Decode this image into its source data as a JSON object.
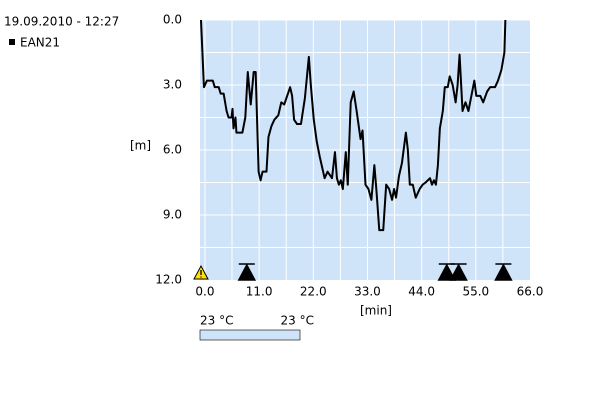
{
  "chart_data": {
    "type": "line",
    "header": "19.09.2010 - 12:27",
    "ylabel": "[m]",
    "xlabel": "[min]",
    "y_inverted": true,
    "xlim": [
      -1,
      66
    ],
    "ylim": [
      0,
      12
    ],
    "xticks": [
      {
        "value": 0,
        "label": "0.0"
      },
      {
        "value": 11,
        "label": "11.0"
      },
      {
        "value": 22,
        "label": "22.0"
      },
      {
        "value": 33,
        "label": "33.0"
      },
      {
        "value": 44,
        "label": "44.0"
      },
      {
        "value": 55,
        "label": "55.0"
      },
      {
        "value": 66,
        "label": "66.0"
      }
    ],
    "yticks": [
      {
        "value": 0,
        "label": "0.0"
      },
      {
        "value": 3,
        "label": "3.0"
      },
      {
        "value": 6,
        "label": "6.0"
      },
      {
        "value": 9,
        "label": "9.0"
      },
      {
        "value": 12,
        "label": "12.0"
      }
    ],
    "xgrid": [
      0,
      5.5,
      11,
      16.5,
      22,
      27.5,
      33,
      38.5,
      44,
      49.5,
      55,
      60.5
    ],
    "ygrid": [
      0,
      1.5,
      3,
      4.5,
      6,
      7.5,
      9,
      10.5
    ],
    "background": "#cfe3f9",
    "series": [
      {
        "name": "EAN21",
        "color": "#000000",
        "x": [
          -0.8,
          -0.2,
          0.4,
          1.6,
          2.0,
          2.8,
          3.2,
          3.8,
          4.4,
          4.8,
          5.4,
          5.6,
          5.8,
          6.2,
          6.4,
          7.6,
          8.2,
          8.7,
          9.3,
          9.9,
          10.3,
          10.9,
          11.3,
          11.7,
          12.5,
          12.9,
          13.5,
          14.1,
          14.9,
          15.5,
          16.1,
          16.7,
          17.3,
          17.7,
          18.1,
          18.7,
          19.5,
          20.3,
          21.1,
          21.5,
          22.1,
          22.7,
          23.3,
          23.9,
          24.3,
          24.9,
          25.8,
          26.4,
          26.8,
          27.2,
          27.6,
          28.0,
          28.6,
          29.0,
          29.6,
          30.2,
          30.8,
          31.6,
          32.0,
          32.6,
          33.2,
          33.8,
          34.4,
          34.8,
          35.4,
          36.2,
          36.8,
          37.4,
          38.0,
          38.4,
          38.8,
          39.4,
          40.0,
          40.8,
          41.2,
          41.6,
          42.2,
          42.8,
          43.6,
          44.2,
          44.8,
          45.7,
          46.1,
          46.5,
          46.9,
          47.3,
          47.7,
          48.3,
          48.7,
          49.3,
          49.7,
          50.3,
          50.9,
          51.3,
          51.7,
          52.3,
          52.9,
          53.5,
          54.1,
          54.7,
          55.1,
          55.9,
          56.5,
          57.3,
          57.9,
          58.9,
          59.5,
          60.2,
          60.8,
          61.0
        ],
        "values": [
          0,
          3.1,
          2.8,
          2.8,
          3.1,
          3.1,
          3.4,
          3.4,
          4.2,
          4.5,
          4.5,
          4.1,
          5.0,
          4.5,
          5.2,
          5.2,
          4.5,
          2.4,
          3.9,
          2.4,
          2.4,
          7.0,
          7.4,
          7.0,
          7.0,
          5.4,
          4.9,
          4.6,
          4.4,
          3.8,
          3.9,
          3.5,
          3.1,
          3.5,
          4.6,
          4.8,
          4.8,
          3.6,
          1.7,
          3.0,
          4.6,
          5.6,
          6.3,
          6.9,
          7.3,
          7.0,
          7.3,
          6.1,
          7.3,
          7.6,
          7.4,
          7.8,
          6.1,
          7.6,
          3.8,
          3.3,
          4.2,
          5.5,
          5.1,
          7.6,
          7.8,
          8.3,
          6.7,
          7.8,
          9.7,
          9.7,
          7.6,
          7.8,
          8.3,
          7.8,
          8.2,
          7.2,
          6.6,
          5.2,
          6.0,
          7.6,
          7.6,
          8.2,
          7.8,
          7.6,
          7.5,
          7.3,
          7.6,
          7.4,
          7.6,
          6.7,
          5.0,
          4.2,
          3.1,
          3.1,
          2.6,
          3.0,
          3.8,
          3.0,
          1.6,
          4.2,
          3.8,
          4.2,
          3.5,
          2.8,
          3.5,
          3.5,
          3.8,
          3.3,
          3.1,
          3.1,
          2.8,
          2.3,
          1.5,
          0
        ]
      }
    ],
    "warning_marks": [
      -0.8
    ],
    "event_marks": [
      8.5,
      49.1,
      51.5,
      60.6
    ],
    "color_scale": {
      "min_label": "23 °C",
      "max_label": "23 °C",
      "color": "#cfe3f9"
    }
  }
}
